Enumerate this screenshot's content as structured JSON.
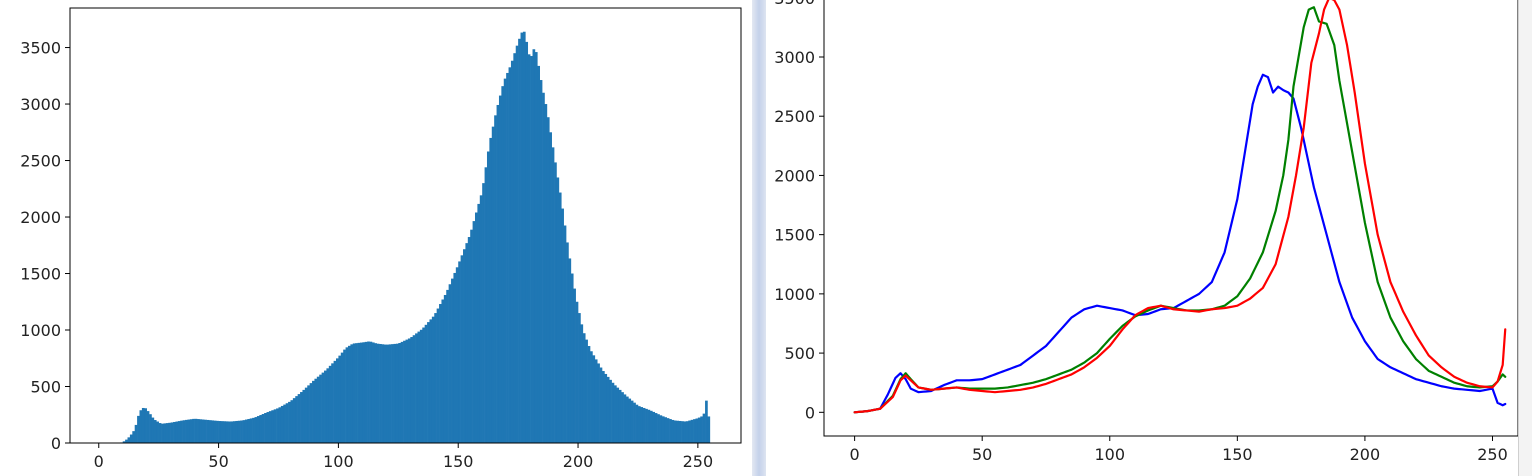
{
  "chart_data": [
    {
      "type": "bar",
      "title": "",
      "xlabel": "",
      "ylabel": "",
      "xlim": [
        -12,
        268
      ],
      "ylim": [
        0,
        3850
      ],
      "xticks": [
        0,
        50,
        100,
        150,
        200,
        250
      ],
      "yticks": [
        0,
        500,
        1000,
        1500,
        2000,
        2500,
        3000,
        3500
      ],
      "grid": false,
      "series": [
        {
          "color": "#1f77b4",
          "x": [
            0,
            5,
            9,
            11,
            13,
            15,
            17,
            19,
            21,
            23,
            26,
            30,
            35,
            40,
            45,
            50,
            55,
            60,
            65,
            70,
            75,
            80,
            85,
            90,
            95,
            100,
            103,
            106,
            110,
            113,
            116,
            120,
            125,
            130,
            135,
            140,
            145,
            150,
            155,
            160,
            163,
            166,
            169,
            172,
            175,
            177,
            178,
            179,
            180,
            181,
            182,
            183,
            185,
            187,
            190,
            193,
            196,
            199,
            202,
            205,
            210,
            215,
            220,
            225,
            230,
            235,
            240,
            245,
            250,
            252,
            253,
            254,
            255
          ],
          "values": [
            0,
            0,
            0,
            20,
            60,
            120,
            280,
            320,
            270,
            210,
            170,
            180,
            200,
            215,
            205,
            195,
            190,
            200,
            225,
            270,
            310,
            370,
            460,
            560,
            650,
            760,
            840,
            880,
            890,
            900,
            880,
            870,
            880,
            930,
            1010,
            1130,
            1330,
            1580,
            1850,
            2230,
            2650,
            2950,
            3200,
            3350,
            3550,
            3660,
            3620,
            3480,
            3400,
            3450,
            3520,
            3400,
            3150,
            2950,
            2550,
            2150,
            1700,
            1300,
            1000,
            830,
            650,
            520,
            420,
            330,
            290,
            240,
            200,
            190,
            220,
            240,
            280,
            470,
            0
          ]
        }
      ]
    },
    {
      "type": "line",
      "title": "",
      "xlabel": "",
      "ylabel": "",
      "xlim": [
        -12,
        260
      ],
      "ylim": [
        -200,
        3650
      ],
      "xticks": [
        0,
        50,
        100,
        150,
        200,
        250
      ],
      "yticks": [
        0,
        500,
        1000,
        1500,
        2000,
        2500,
        3000,
        3500
      ],
      "grid": false,
      "series": [
        {
          "color": "#0000ff",
          "x": [
            0,
            5,
            10,
            13,
            16,
            18,
            20,
            22,
            25,
            30,
            35,
            40,
            45,
            50,
            55,
            60,
            65,
            70,
            75,
            80,
            85,
            90,
            95,
            100,
            105,
            110,
            115,
            120,
            125,
            130,
            135,
            140,
            145,
            150,
            153,
            156,
            158,
            160,
            162,
            164,
            166,
            168,
            170,
            172,
            175,
            178,
            180,
            185,
            190,
            195,
            200,
            205,
            210,
            215,
            220,
            225,
            230,
            235,
            240,
            245,
            250,
            252,
            254,
            255
          ],
          "values": [
            0,
            10,
            30,
            150,
            290,
            330,
            280,
            200,
            170,
            180,
            230,
            270,
            270,
            280,
            320,
            360,
            400,
            480,
            560,
            680,
            800,
            870,
            900,
            880,
            860,
            820,
            830,
            870,
            880,
            940,
            1000,
            1100,
            1350,
            1800,
            2200,
            2600,
            2750,
            2850,
            2830,
            2700,
            2750,
            2720,
            2700,
            2650,
            2400,
            2100,
            1900,
            1500,
            1100,
            800,
            600,
            450,
            380,
            330,
            280,
            250,
            220,
            200,
            190,
            180,
            200,
            80,
            60,
            70
          ]
        },
        {
          "color": "#008000",
          "x": [
            0,
            5,
            10,
            15,
            18,
            20,
            22,
            25,
            30,
            35,
            40,
            45,
            50,
            55,
            60,
            65,
            70,
            75,
            80,
            85,
            90,
            95,
            100,
            105,
            110,
            115,
            120,
            125,
            130,
            135,
            140,
            145,
            150,
            155,
            160,
            165,
            168,
            170,
            172,
            174,
            176,
            178,
            180,
            182,
            185,
            188,
            190,
            195,
            200,
            205,
            210,
            215,
            220,
            225,
            230,
            235,
            240,
            245,
            250,
            252,
            254,
            255
          ],
          "values": [
            0,
            10,
            30,
            140,
            280,
            330,
            280,
            210,
            190,
            200,
            210,
            200,
            200,
            200,
            210,
            230,
            250,
            280,
            320,
            360,
            420,
            500,
            620,
            730,
            810,
            860,
            900,
            880,
            860,
            860,
            870,
            900,
            980,
            1130,
            1350,
            1700,
            2000,
            2300,
            2750,
            3000,
            3250,
            3400,
            3420,
            3300,
            3280,
            3100,
            2800,
            2200,
            1600,
            1100,
            800,
            600,
            450,
            350,
            300,
            250,
            220,
            210,
            220,
            260,
            320,
            300
          ]
        },
        {
          "color": "#ff0000",
          "x": [
            0,
            5,
            10,
            15,
            18,
            20,
            22,
            25,
            30,
            35,
            40,
            45,
            50,
            55,
            60,
            65,
            70,
            75,
            80,
            85,
            90,
            95,
            100,
            105,
            110,
            115,
            120,
            125,
            130,
            135,
            140,
            145,
            150,
            155,
            160,
            165,
            170,
            173,
            176,
            179,
            182,
            184,
            186,
            188,
            190,
            193,
            196,
            200,
            205,
            210,
            215,
            220,
            225,
            230,
            235,
            240,
            245,
            250,
            252,
            254,
            255
          ],
          "values": [
            0,
            10,
            30,
            130,
            270,
            310,
            270,
            210,
            190,
            200,
            210,
            190,
            180,
            170,
            180,
            190,
            210,
            240,
            280,
            320,
            380,
            460,
            560,
            700,
            820,
            880,
            900,
            870,
            860,
            850,
            870,
            880,
            900,
            960,
            1050,
            1250,
            1650,
            2000,
            2400,
            2950,
            3200,
            3400,
            3500,
            3480,
            3400,
            3100,
            2700,
            2100,
            1500,
            1100,
            850,
            650,
            480,
            380,
            300,
            250,
            220,
            210,
            260,
            400,
            700
          ]
        }
      ]
    }
  ]
}
